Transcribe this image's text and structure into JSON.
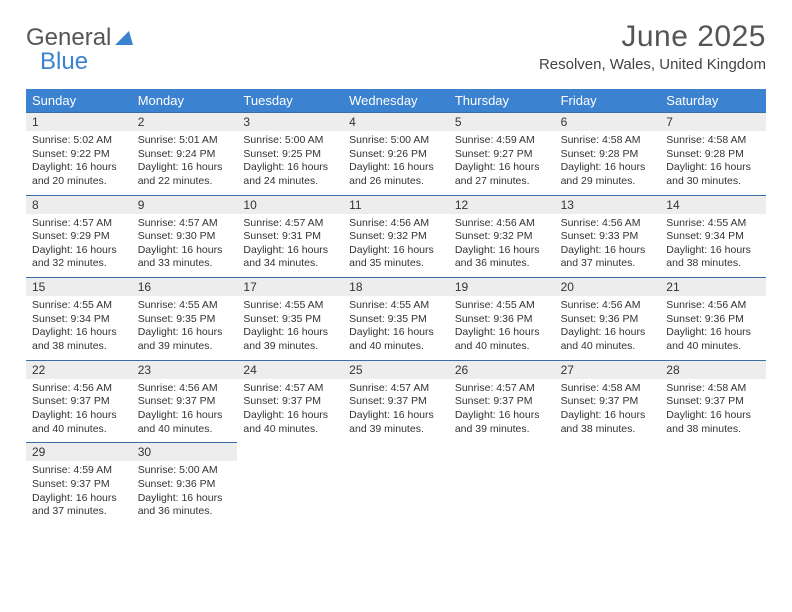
{
  "logo": {
    "text1": "General",
    "text2": "Blue"
  },
  "header": {
    "month": "June 2025",
    "location": "Resolven, Wales, United Kingdom"
  },
  "colors": {
    "header_bg": "#3b82d0",
    "header_text": "#ffffff",
    "daynum_bg": "#ededed",
    "daynum_border": "#3b6ea8",
    "body_text": "#333333",
    "page_bg": "#ffffff"
  },
  "daynames": [
    "Sunday",
    "Monday",
    "Tuesday",
    "Wednesday",
    "Thursday",
    "Friday",
    "Saturday"
  ],
  "weeks": [
    [
      {
        "n": "1",
        "sr": "5:02 AM",
        "ss": "9:22 PM",
        "dl": "16 hours and 20 minutes."
      },
      {
        "n": "2",
        "sr": "5:01 AM",
        "ss": "9:24 PM",
        "dl": "16 hours and 22 minutes."
      },
      {
        "n": "3",
        "sr": "5:00 AM",
        "ss": "9:25 PM",
        "dl": "16 hours and 24 minutes."
      },
      {
        "n": "4",
        "sr": "5:00 AM",
        "ss": "9:26 PM",
        "dl": "16 hours and 26 minutes."
      },
      {
        "n": "5",
        "sr": "4:59 AM",
        "ss": "9:27 PM",
        "dl": "16 hours and 27 minutes."
      },
      {
        "n": "6",
        "sr": "4:58 AM",
        "ss": "9:28 PM",
        "dl": "16 hours and 29 minutes."
      },
      {
        "n": "7",
        "sr": "4:58 AM",
        "ss": "9:28 PM",
        "dl": "16 hours and 30 minutes."
      }
    ],
    [
      {
        "n": "8",
        "sr": "4:57 AM",
        "ss": "9:29 PM",
        "dl": "16 hours and 32 minutes."
      },
      {
        "n": "9",
        "sr": "4:57 AM",
        "ss": "9:30 PM",
        "dl": "16 hours and 33 minutes."
      },
      {
        "n": "10",
        "sr": "4:57 AM",
        "ss": "9:31 PM",
        "dl": "16 hours and 34 minutes."
      },
      {
        "n": "11",
        "sr": "4:56 AM",
        "ss": "9:32 PM",
        "dl": "16 hours and 35 minutes."
      },
      {
        "n": "12",
        "sr": "4:56 AM",
        "ss": "9:32 PM",
        "dl": "16 hours and 36 minutes."
      },
      {
        "n": "13",
        "sr": "4:56 AM",
        "ss": "9:33 PM",
        "dl": "16 hours and 37 minutes."
      },
      {
        "n": "14",
        "sr": "4:55 AM",
        "ss": "9:34 PM",
        "dl": "16 hours and 38 minutes."
      }
    ],
    [
      {
        "n": "15",
        "sr": "4:55 AM",
        "ss": "9:34 PM",
        "dl": "16 hours and 38 minutes."
      },
      {
        "n": "16",
        "sr": "4:55 AM",
        "ss": "9:35 PM",
        "dl": "16 hours and 39 minutes."
      },
      {
        "n": "17",
        "sr": "4:55 AM",
        "ss": "9:35 PM",
        "dl": "16 hours and 39 minutes."
      },
      {
        "n": "18",
        "sr": "4:55 AM",
        "ss": "9:35 PM",
        "dl": "16 hours and 40 minutes."
      },
      {
        "n": "19",
        "sr": "4:55 AM",
        "ss": "9:36 PM",
        "dl": "16 hours and 40 minutes."
      },
      {
        "n": "20",
        "sr": "4:56 AM",
        "ss": "9:36 PM",
        "dl": "16 hours and 40 minutes."
      },
      {
        "n": "21",
        "sr": "4:56 AM",
        "ss": "9:36 PM",
        "dl": "16 hours and 40 minutes."
      }
    ],
    [
      {
        "n": "22",
        "sr": "4:56 AM",
        "ss": "9:37 PM",
        "dl": "16 hours and 40 minutes."
      },
      {
        "n": "23",
        "sr": "4:56 AM",
        "ss": "9:37 PM",
        "dl": "16 hours and 40 minutes."
      },
      {
        "n": "24",
        "sr": "4:57 AM",
        "ss": "9:37 PM",
        "dl": "16 hours and 40 minutes."
      },
      {
        "n": "25",
        "sr": "4:57 AM",
        "ss": "9:37 PM",
        "dl": "16 hours and 39 minutes."
      },
      {
        "n": "26",
        "sr": "4:57 AM",
        "ss": "9:37 PM",
        "dl": "16 hours and 39 minutes."
      },
      {
        "n": "27",
        "sr": "4:58 AM",
        "ss": "9:37 PM",
        "dl": "16 hours and 38 minutes."
      },
      {
        "n": "28",
        "sr": "4:58 AM",
        "ss": "9:37 PM",
        "dl": "16 hours and 38 minutes."
      }
    ],
    [
      {
        "n": "29",
        "sr": "4:59 AM",
        "ss": "9:37 PM",
        "dl": "16 hours and 37 minutes."
      },
      {
        "n": "30",
        "sr": "5:00 AM",
        "ss": "9:36 PM",
        "dl": "16 hours and 36 minutes."
      },
      null,
      null,
      null,
      null,
      null
    ]
  ],
  "labels": {
    "sunrise": "Sunrise: ",
    "sunset": "Sunset: ",
    "daylight": "Daylight: "
  }
}
